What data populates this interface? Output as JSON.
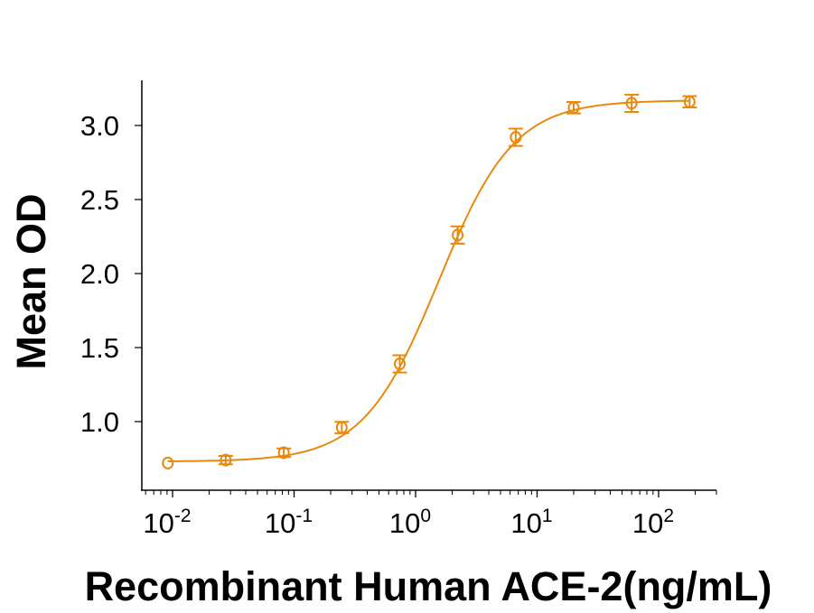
{
  "chart_data": {
    "type": "scatter",
    "title": "",
    "xlabel": "Recombinant Human ACE-2(ng/mL)",
    "ylabel": "Mean OD",
    "xscale": "log",
    "xlim": [
      0.0075,
      400
    ],
    "ylim": [
      0.54,
      3.3
    ],
    "xticks": [
      {
        "base": "10",
        "exp": "-2"
      },
      {
        "base": "10",
        "exp": "-1"
      },
      {
        "base": "10",
        "exp": "0"
      },
      {
        "base": "10",
        "exp": "1"
      },
      {
        "base": "10",
        "exp": "2"
      }
    ],
    "yticks": [
      "1.0",
      "1.5",
      "2.0",
      "2.5",
      "3.0"
    ],
    "grid": false,
    "legend": "none",
    "color": "#E8890C",
    "marker": "open-circle",
    "fit_line": "sigmoidal curve",
    "series": [
      {
        "x": [
          0.00914,
          0.0274,
          0.0823,
          0.247,
          0.741,
          2.22,
          6.67,
          20,
          60,
          180
        ],
        "y": [
          0.72,
          0.74,
          0.79,
          0.96,
          1.39,
          2.26,
          2.92,
          3.12,
          3.15,
          3.16
        ],
        "yerr": [
          0.0,
          0.01,
          0.01,
          0.02,
          0.04,
          0.04,
          0.04,
          0.02,
          0.04,
          0.02
        ]
      }
    ]
  }
}
